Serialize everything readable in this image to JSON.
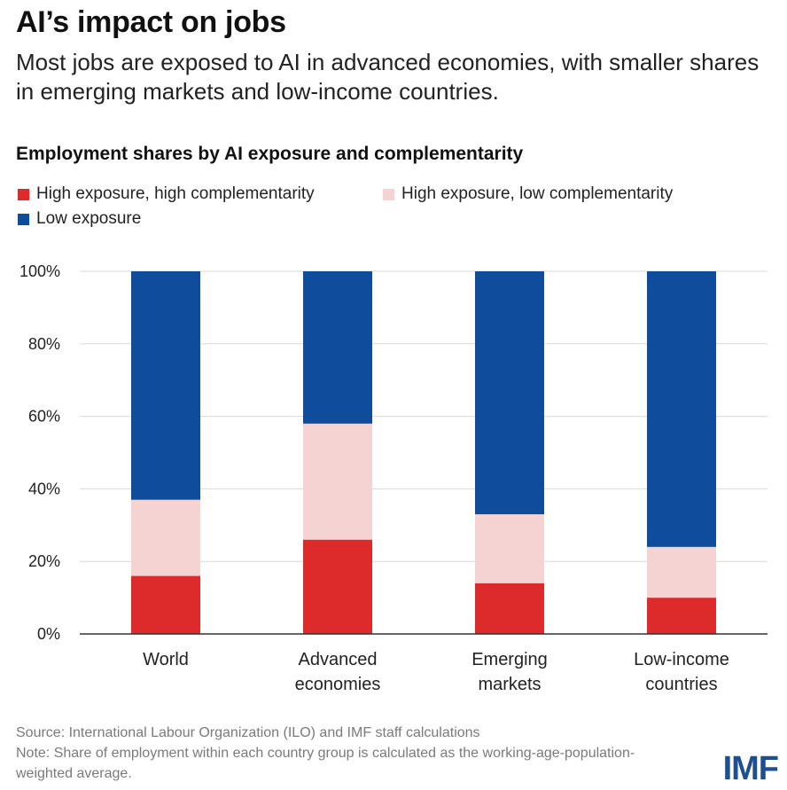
{
  "header": {
    "title": "AI’s impact on jobs",
    "subtitle": "Most jobs are exposed to AI in advanced economies, with smaller shares in emerging markets and low-income countries."
  },
  "chart_data": {
    "type": "bar",
    "stacked": true,
    "title": "Employment shares by AI exposure and complementarity",
    "categories": [
      [
        "World"
      ],
      [
        "Advanced",
        "economies"
      ],
      [
        "Emerging",
        "markets"
      ],
      [
        "Low-income",
        "countries"
      ]
    ],
    "series": [
      {
        "name": "High exposure, high complementarity",
        "color": "#dd2a2a",
        "values": [
          16,
          26,
          14,
          10
        ]
      },
      {
        "name": "High exposure, low complementarity",
        "color": "#f6d3d3",
        "values": [
          21,
          32,
          19,
          14
        ]
      },
      {
        "name": "Low exposure",
        "color": "#0f4c9b",
        "values": [
          63,
          42,
          67,
          76
        ]
      }
    ],
    "ylim": [
      0,
      100
    ],
    "yticks": [
      "0%",
      "20%",
      "40%",
      "60%",
      "80%",
      "100%"
    ],
    "xlabel": "",
    "ylabel": "",
    "grid": true,
    "legend_position": "top"
  },
  "footer": {
    "source": "Source: International Labour Organization (ILO) and IMF staff calculations",
    "note": "Note: Share of employment within each country group is calculated as the working-age-population-weighted average.",
    "logo_text": "IMF"
  }
}
